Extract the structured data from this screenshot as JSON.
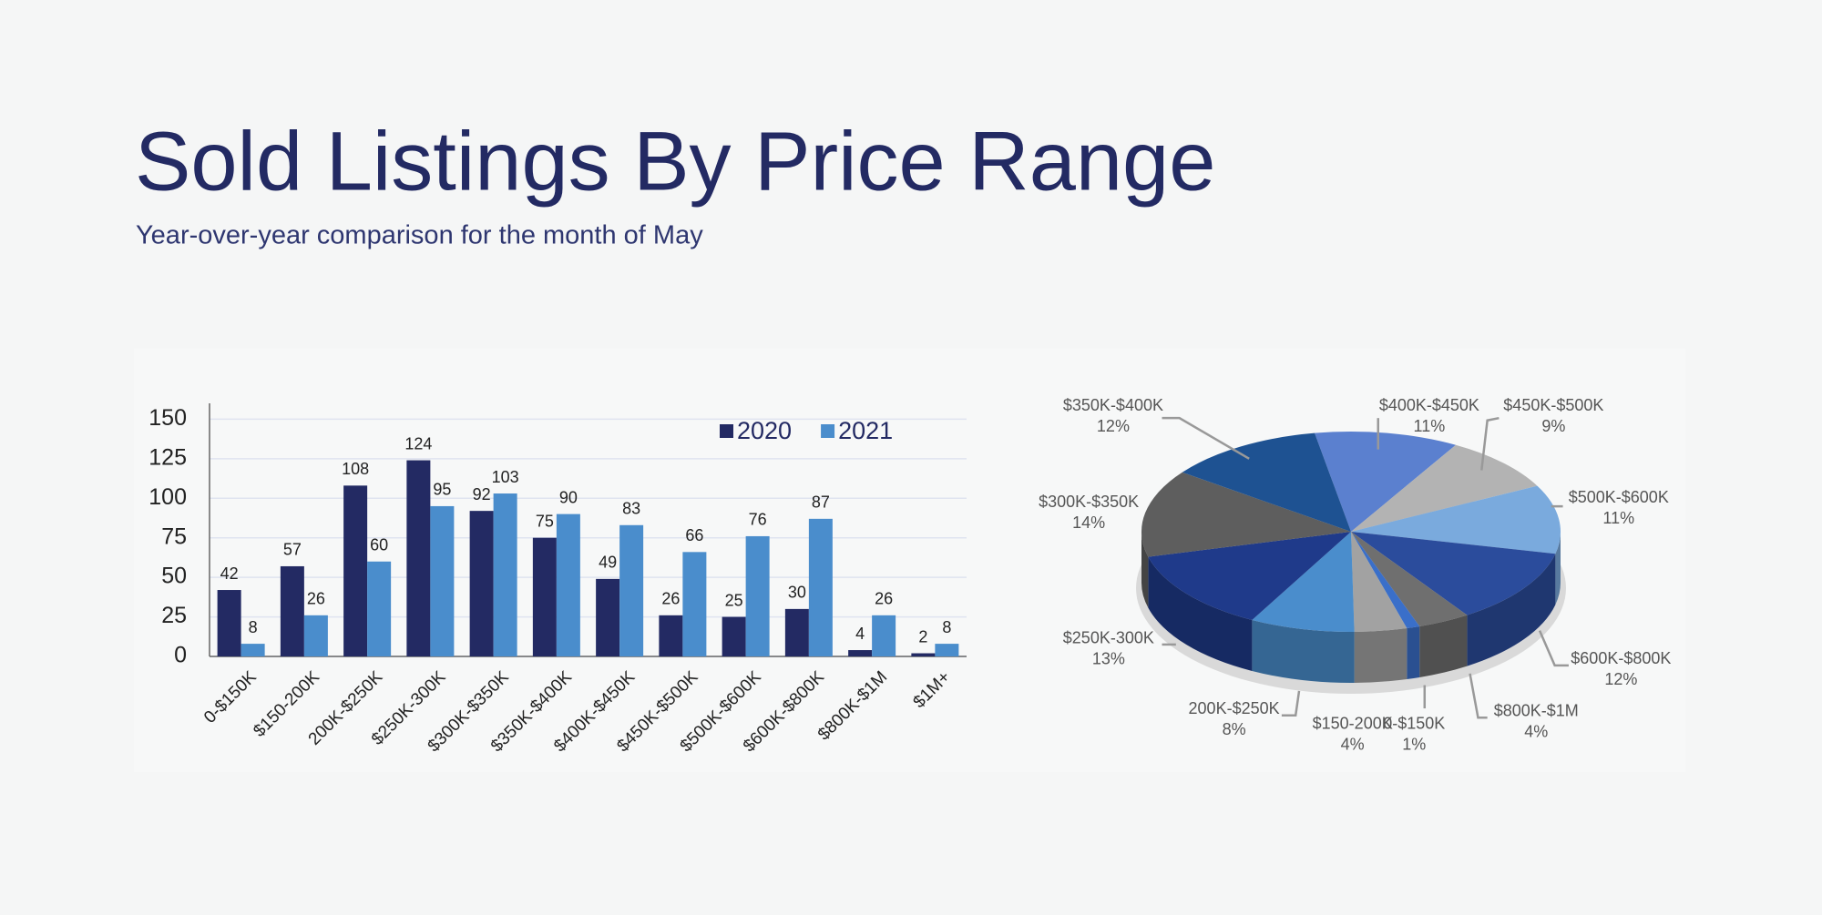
{
  "header": {
    "title": "Sold Listings By Price Range",
    "subtitle": "Year-over-year comparison for the month of May"
  },
  "chart_data": [
    {
      "type": "bar",
      "categories": [
        "0-$150K",
        "$150-200K",
        "200K-$250K",
        "$250K-300K",
        "$300K-$350K",
        "$350K-$400K",
        "$400K-$450K",
        "$450K-$500K",
        "$500K-$600K",
        "$600K-$800K",
        "$800K-$1M",
        "$1M+"
      ],
      "series": [
        {
          "name": "2020",
          "color": "#232a63",
          "values": [
            42,
            57,
            108,
            124,
            92,
            75,
            49,
            26,
            25,
            30,
            4,
            2
          ]
        },
        {
          "name": "2021",
          "color": "#4a8dcc",
          "values": [
            8,
            26,
            60,
            95,
            103,
            90,
            83,
            66,
            76,
            87,
            26,
            8
          ]
        }
      ],
      "ylim": [
        0,
        160
      ],
      "yticks": [
        0,
        25,
        50,
        75,
        100,
        125,
        150
      ],
      "grid": true,
      "legend": "upper right"
    },
    {
      "type": "pie",
      "categories": [
        "$400K-$450K",
        "$450K-$500K",
        "$500K-$600K",
        "$600K-$800K",
        "$800K-$1M",
        "0-$150K",
        "$150-200K",
        "200K-$250K",
        "$250K-300K",
        "$300K-$350K",
        "$350K-$400K"
      ],
      "values": [
        11,
        9,
        11,
        12,
        4,
        1,
        4,
        8,
        13,
        14,
        12
      ],
      "value_labels": [
        "11%",
        "9%",
        "11%",
        "12%",
        "4%",
        "1%",
        "4%",
        "8%",
        "13%",
        "14%",
        "12%"
      ],
      "colors": [
        "#5b80cf",
        "#b3b3b3",
        "#7aaadd",
        "#2b4c9c",
        "#6f6f6f",
        "#3a6fc9",
        "#a2a2a2",
        "#4a8dcc",
        "#1f3a8a",
        "#5e5e5e",
        "#1e5292"
      ]
    }
  ]
}
